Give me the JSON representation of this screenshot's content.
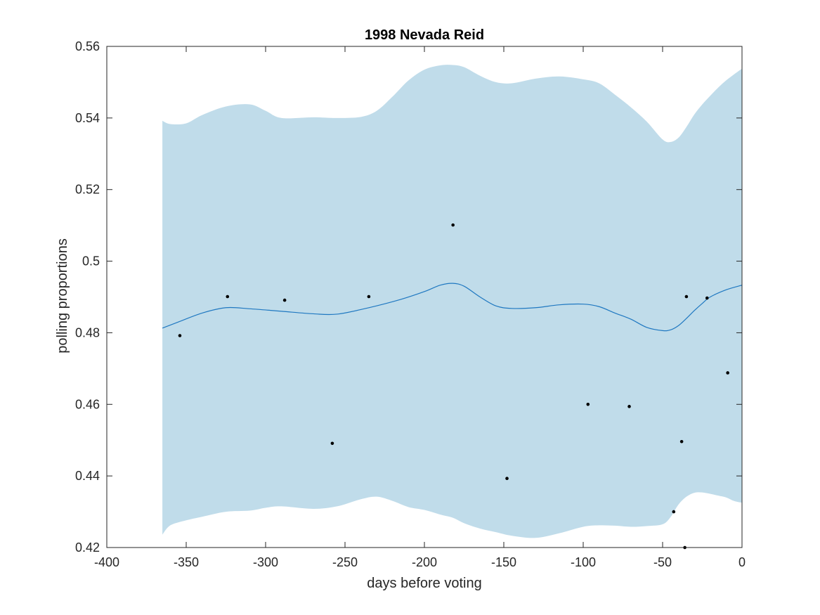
{
  "chart_data": {
    "type": "line",
    "title": "1998 Nevada Reid",
    "xlabel": "days before voting",
    "ylabel": "polling proportions",
    "xlim": [
      -400,
      0
    ],
    "ylim": [
      0.42,
      0.56
    ],
    "xticks": [
      -400,
      -350,
      -300,
      -250,
      -200,
      -150,
      -100,
      -50,
      0
    ],
    "xtick_labels": [
      "-400",
      "-350",
      "-300",
      "-250",
      "-200",
      "-150",
      "-100",
      "-50",
      "0"
    ],
    "yticks": [
      0.42,
      0.44,
      0.46,
      0.48,
      0.5,
      0.52,
      0.54,
      0.56
    ],
    "ytick_labels": [
      "0.42",
      "0.44",
      "0.46",
      "0.48",
      "0.5",
      "0.52",
      "0.54",
      "0.56"
    ],
    "grid": false,
    "colors": {
      "band": "#c0dcea",
      "line": "#1f78c1",
      "points": "#000000",
      "axes": "#262626"
    },
    "series": [
      {
        "name": "posterior mean",
        "type": "line",
        "x": [
          -365,
          -355,
          -340,
          -325,
          -310,
          -290,
          -270,
          -255,
          -235,
          -215,
          -200,
          -190,
          -182,
          -175,
          -165,
          -155,
          -145,
          -130,
          -115,
          -100,
          -90,
          -80,
          -70,
          -60,
          -50,
          -45,
          -40,
          -35,
          -30,
          -25,
          -20,
          -10,
          0
        ],
        "y": [
          0.4813,
          0.483,
          0.4855,
          0.487,
          0.4867,
          0.486,
          0.4853,
          0.4852,
          0.487,
          0.4893,
          0.4915,
          0.4933,
          0.4938,
          0.493,
          0.49,
          0.4875,
          0.4868,
          0.487,
          0.4878,
          0.488,
          0.4873,
          0.4855,
          0.4838,
          0.4815,
          0.4806,
          0.4808,
          0.482,
          0.484,
          0.4862,
          0.4882,
          0.49,
          0.492,
          0.4933
        ]
      },
      {
        "name": "confidence band",
        "type": "area",
        "x": [
          -365,
          -360,
          -350,
          -340,
          -325,
          -310,
          -300,
          -290,
          -270,
          -255,
          -240,
          -230,
          -220,
          -210,
          -200,
          -190,
          -182,
          -175,
          -165,
          -155,
          -145,
          -130,
          -115,
          -100,
          -90,
          -80,
          -70,
          -60,
          -50,
          -45,
          -40,
          -35,
          -30,
          -25,
          -20,
          -15,
          -10,
          -5,
          0
        ],
        "upper": [
          0.5392,
          0.5383,
          0.5385,
          0.5408,
          0.5432,
          0.5438,
          0.542,
          0.54,
          0.5402,
          0.54,
          0.5403,
          0.542,
          0.546,
          0.5505,
          0.5535,
          0.5547,
          0.5548,
          0.5542,
          0.5518,
          0.55,
          0.5497,
          0.551,
          0.5516,
          0.5508,
          0.5497,
          0.5465,
          0.543,
          0.539,
          0.534,
          0.5333,
          0.5345,
          0.5375,
          0.541,
          0.5438,
          0.5462,
          0.5485,
          0.5505,
          0.5522,
          0.5538
        ],
        "lower": [
          0.4236,
          0.4262,
          0.4276,
          0.4286,
          0.43,
          0.4303,
          0.4311,
          0.4315,
          0.4308,
          0.4315,
          0.4335,
          0.4342,
          0.433,
          0.4313,
          0.4305,
          0.4292,
          0.4283,
          0.4268,
          0.4253,
          0.4243,
          0.4233,
          0.4227,
          0.424,
          0.4258,
          0.4262,
          0.4261,
          0.4258,
          0.426,
          0.4265,
          0.4285,
          0.432,
          0.4342,
          0.4353,
          0.4354,
          0.435,
          0.4345,
          0.434,
          0.433,
          0.4325
        ]
      },
      {
        "name": "polls",
        "type": "scatter",
        "x": [
          -354,
          -324,
          -288,
          -258,
          -235,
          -182,
          -148,
          -97,
          -71,
          -43,
          -38,
          -36,
          -35,
          -22,
          -9
        ],
        "y": [
          0.4792,
          0.4901,
          0.4891,
          0.4491,
          0.4901,
          0.5101,
          0.4393,
          0.46,
          0.4594,
          0.43,
          0.4496,
          0.42,
          0.4901,
          0.4897,
          0.4688
        ]
      }
    ]
  }
}
